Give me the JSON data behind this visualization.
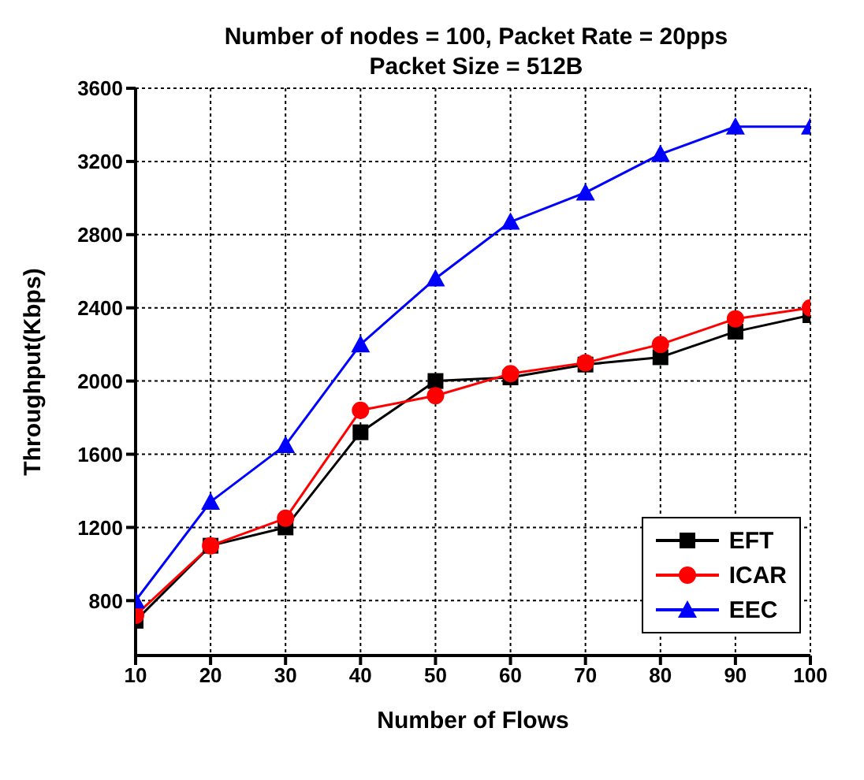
{
  "chart_data": {
    "type": "line",
    "title": "Number of nodes = 100, Packet Rate = 20pps",
    "subtitle": "Packet Size = 512B",
    "xlabel": "Number of Flows",
    "ylabel": "Throughput(Kbps)",
    "x": [
      10,
      20,
      30,
      40,
      50,
      60,
      70,
      80,
      90,
      100
    ],
    "series": [
      {
        "name": "EFT",
        "color": "#000000",
        "marker": "square",
        "values": [
          690,
          1100,
          1200,
          1720,
          2000,
          2020,
          2090,
          2130,
          2270,
          2360
        ]
      },
      {
        "name": "ICAR",
        "color": "#ff0000",
        "marker": "circle",
        "values": [
          720,
          1100,
          1250,
          1840,
          1920,
          2040,
          2100,
          2200,
          2340,
          2400
        ]
      },
      {
        "name": "EEC",
        "color": "#0000ff",
        "marker": "triangle",
        "values": [
          800,
          1340,
          1650,
          2200,
          2560,
          2870,
          3030,
          3240,
          3390,
          3390
        ]
      }
    ],
    "xlim": [
      10,
      100
    ],
    "xticks": [
      10,
      20,
      30,
      40,
      50,
      60,
      70,
      80,
      90,
      100
    ],
    "ylim": [
      500,
      3600
    ],
    "yticks": [
      800,
      1200,
      1600,
      2000,
      2400,
      2800,
      3200,
      3600
    ],
    "grid": true,
    "legend": "bottom right",
    "line_style": "solid"
  }
}
